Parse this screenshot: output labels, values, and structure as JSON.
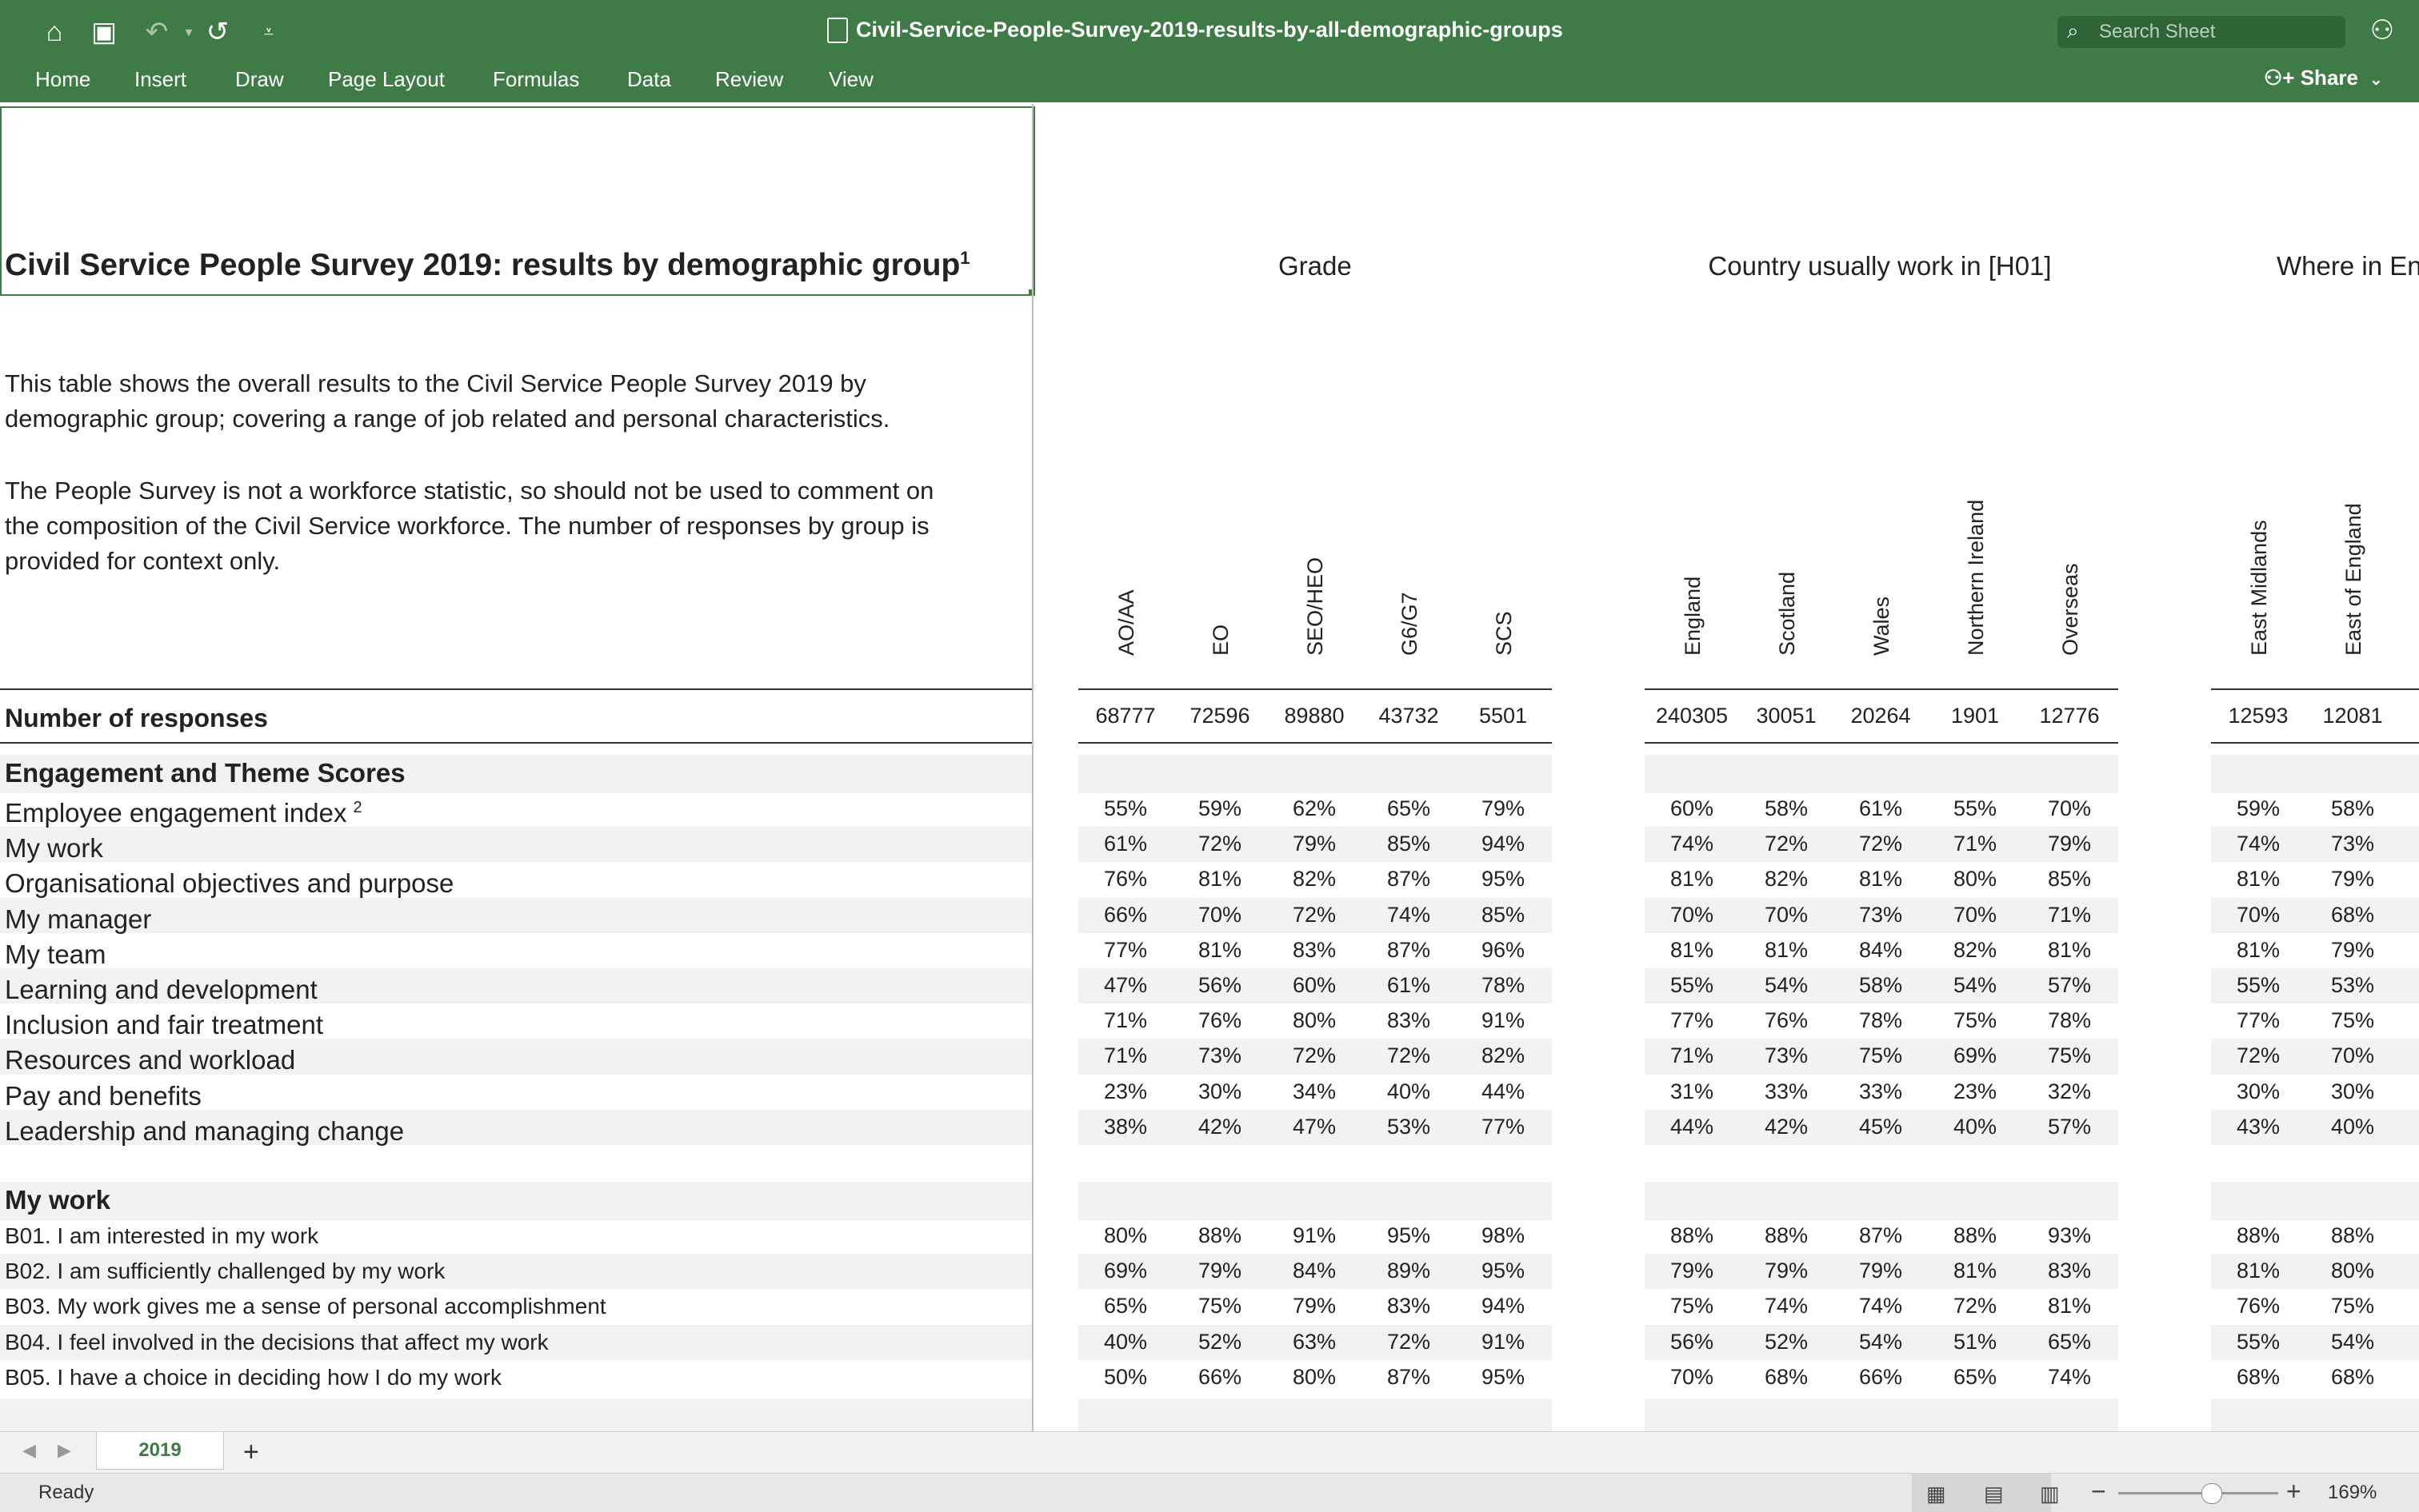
{
  "window": {
    "title": "Civil-Service-People-Survey-2019-results-by-all-demographic-groups",
    "search_placeholder": "Search Sheet",
    "share_label": "Share"
  },
  "menu": [
    "Home",
    "Insert",
    "Draw",
    "Page Layout",
    "Formulas",
    "Data",
    "Review",
    "View"
  ],
  "sheet": {
    "title": "Civil Service People Survey 2019: results by demographic group",
    "title_footnote": "1",
    "intro1": [
      "This table shows the overall results to the Civil Service People Survey 2019 by",
      "demographic group; covering a range of job related and personal characteristics."
    ],
    "intro2": [
      "The People Survey is not a workforce statistic, so should not be used to comment on",
      "the composition of the Civil Service workforce. The number of responses by group is",
      "provided for context only."
    ],
    "groups": [
      {
        "label": "Grade",
        "columns": [
          "AO/AA",
          "EO",
          "SEO/HEO",
          "G6/G7",
          "SCS"
        ]
      },
      {
        "label": "Country usually work in [H01]",
        "columns": [
          "England",
          "Scotland",
          "Wales",
          "Northern Ireland",
          "Overseas"
        ]
      },
      {
        "label": "Where in En",
        "columns": [
          "East Midlands",
          "East of England"
        ]
      }
    ],
    "responses": {
      "label": "Number of responses",
      "values": [
        "68777",
        "72596",
        "89880",
        "43732",
        "5501",
        "240305",
        "30051",
        "20264",
        "1901",
        "12776",
        "12593",
        "12081"
      ]
    },
    "sections": [
      {
        "header": "Engagement and Theme Scores",
        "rows": [
          {
            "label": "Employee engagement index",
            "footnote": "2",
            "values": [
              "55%",
              "59%",
              "62%",
              "65%",
              "79%",
              "60%",
              "58%",
              "61%",
              "55%",
              "70%",
              "59%",
              "58%"
            ]
          },
          {
            "label": "My work",
            "values": [
              "61%",
              "72%",
              "79%",
              "85%",
              "94%",
              "74%",
              "72%",
              "72%",
              "71%",
              "79%",
              "74%",
              "73%"
            ]
          },
          {
            "label": "Organisational objectives and purpose",
            "values": [
              "76%",
              "81%",
              "82%",
              "87%",
              "95%",
              "81%",
              "82%",
              "81%",
              "80%",
              "85%",
              "81%",
              "79%"
            ]
          },
          {
            "label": "My manager",
            "values": [
              "66%",
              "70%",
              "72%",
              "74%",
              "85%",
              "70%",
              "70%",
              "73%",
              "70%",
              "71%",
              "70%",
              "68%"
            ]
          },
          {
            "label": "My team",
            "values": [
              "77%",
              "81%",
              "83%",
              "87%",
              "96%",
              "81%",
              "81%",
              "84%",
              "82%",
              "81%",
              "81%",
              "79%"
            ]
          },
          {
            "label": "Learning and development",
            "values": [
              "47%",
              "56%",
              "60%",
              "61%",
              "78%",
              "55%",
              "54%",
              "58%",
              "54%",
              "57%",
              "55%",
              "53%"
            ]
          },
          {
            "label": "Inclusion and fair treatment",
            "values": [
              "71%",
              "76%",
              "80%",
              "83%",
              "91%",
              "77%",
              "76%",
              "78%",
              "75%",
              "78%",
              "77%",
              "75%"
            ]
          },
          {
            "label": "Resources and workload",
            "values": [
              "71%",
              "73%",
              "72%",
              "72%",
              "82%",
              "71%",
              "73%",
              "75%",
              "69%",
              "75%",
              "72%",
              "70%"
            ]
          },
          {
            "label": "Pay and benefits",
            "values": [
              "23%",
              "30%",
              "34%",
              "40%",
              "44%",
              "31%",
              "33%",
              "33%",
              "23%",
              "32%",
              "30%",
              "30%"
            ]
          },
          {
            "label": "Leadership and managing change",
            "values": [
              "38%",
              "42%",
              "47%",
              "53%",
              "77%",
              "44%",
              "42%",
              "45%",
              "40%",
              "57%",
              "43%",
              "40%"
            ]
          }
        ]
      },
      {
        "header": "My work",
        "rows": [
          {
            "label": "B01. I am interested in my work",
            "values": [
              "80%",
              "88%",
              "91%",
              "95%",
              "98%",
              "88%",
              "88%",
              "87%",
              "88%",
              "93%",
              "88%",
              "88%"
            ]
          },
          {
            "label": "B02. I am sufficiently challenged by my work",
            "values": [
              "69%",
              "79%",
              "84%",
              "89%",
              "95%",
              "79%",
              "79%",
              "79%",
              "81%",
              "83%",
              "81%",
              "80%"
            ]
          },
          {
            "label": "B03. My work gives me a sense of personal accomplishment",
            "values": [
              "65%",
              "75%",
              "79%",
              "83%",
              "94%",
              "75%",
              "74%",
              "74%",
              "72%",
              "81%",
              "76%",
              "75%"
            ]
          },
          {
            "label": "B04. I feel involved in the decisions that affect my work",
            "values": [
              "40%",
              "52%",
              "63%",
              "72%",
              "91%",
              "56%",
              "52%",
              "54%",
              "51%",
              "65%",
              "55%",
              "54%"
            ]
          },
          {
            "label": "B05. I have a choice in deciding how I do my work",
            "values": [
              "50%",
              "66%",
              "80%",
              "87%",
              "95%",
              "70%",
              "68%",
              "66%",
              "65%",
              "74%",
              "68%",
              "68%"
            ]
          }
        ]
      }
    ]
  },
  "tabs": {
    "active": "2019",
    "add_label": "+"
  },
  "status": {
    "text": "Ready",
    "zoom": "169%"
  }
}
